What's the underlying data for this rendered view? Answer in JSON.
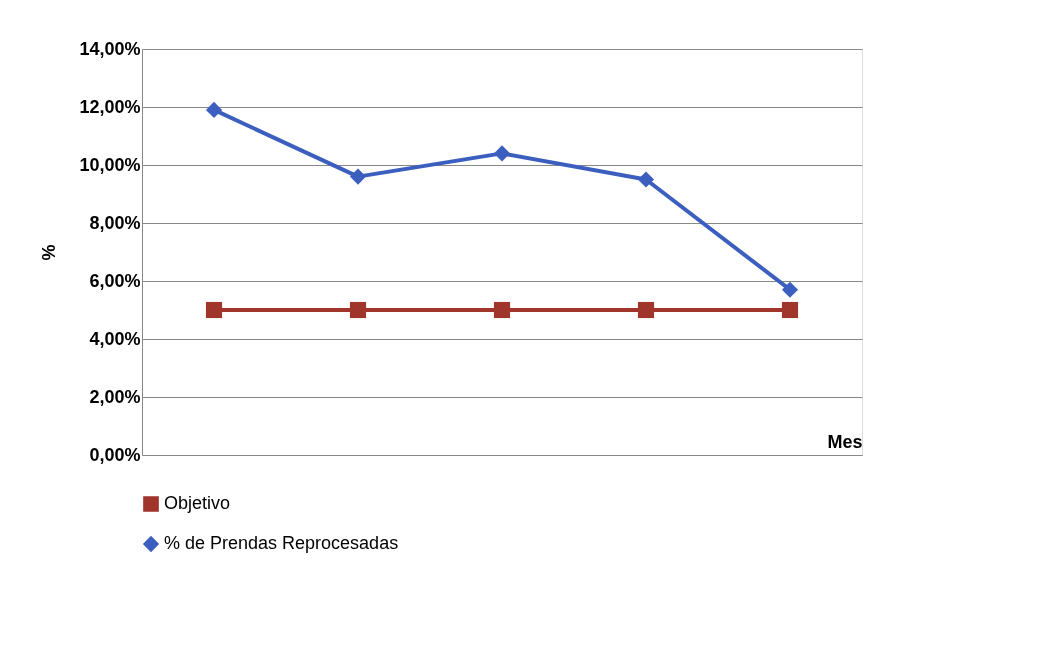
{
  "chart_data": {
    "type": "line",
    "xlabel": "Mes",
    "ylabel": "%",
    "categories": [
      null,
      null,
      null,
      null,
      null
    ],
    "series": [
      {
        "name": "Objetivo",
        "color": "#a0352b",
        "values": [
          5,
          5,
          5,
          5,
          5
        ],
        "marker": "square"
      },
      {
        "name": "% de Prendas Reprocesadas",
        "color": "#3c5fbf",
        "values": [
          11.9,
          9.6,
          10.4,
          9.5,
          5.7
        ],
        "marker": "diamond"
      }
    ],
    "ylim": [
      0,
      14
    ],
    "yticks": [
      {
        "value": 0,
        "label": "0,00%"
      },
      {
        "value": 2,
        "label": "2,00%"
      },
      {
        "value": 4,
        "label": "4,00%"
      },
      {
        "value": 6,
        "label": "6,00%"
      },
      {
        "value": 8,
        "label": "8,00%"
      },
      {
        "value": 10,
        "label": "10,00%"
      },
      {
        "value": 12,
        "label": "12,00%"
      },
      {
        "value": 14,
        "label": "14,00%"
      }
    ],
    "grid": "y",
    "legend": "bottom",
    "line_style": "solid"
  }
}
